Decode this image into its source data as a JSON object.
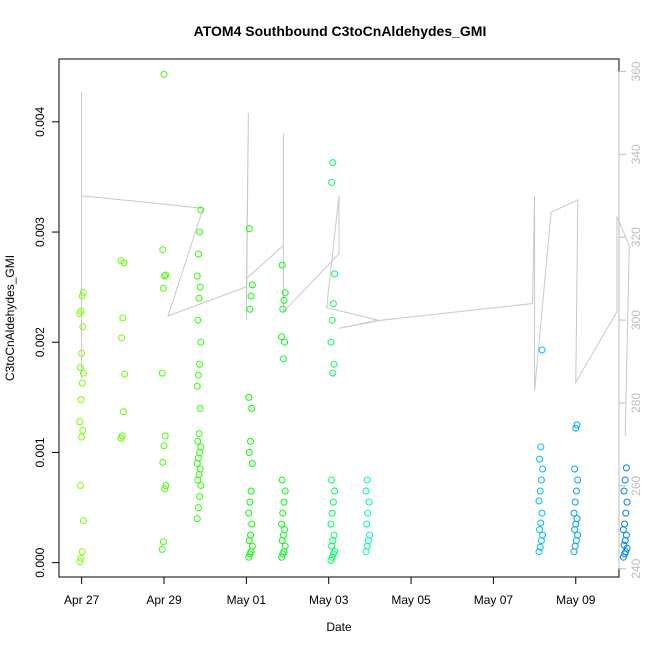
{
  "chart_data": {
    "type": "scatter",
    "title": "ATOM4 Southbound C3toCnAldehydes_GMI",
    "xlabel": "Date",
    "ylabel": "C3toCnAldehydes_GMI",
    "x_ticks": [
      "Apr 27",
      "Apr 29",
      "May 01",
      "May 03",
      "May 05",
      "May 07",
      "May 09"
    ],
    "x_tick_days": [
      0,
      2,
      4,
      6,
      8,
      10,
      12
    ],
    "x_range_days": [
      -0.55,
      13.05
    ],
    "y_ticks": [
      "0.000",
      "0.001",
      "0.002",
      "0.003",
      "0.004"
    ],
    "y_tick_values": [
      0,
      0.001,
      0.002,
      0.003,
      0.004
    ],
    "y_range": [
      -0.00013,
      0.00457
    ],
    "y_right_ticks": [
      "240",
      "260",
      "280",
      "300",
      "320",
      "340",
      "360"
    ],
    "y_right_tick_values": [
      240,
      260,
      280,
      300,
      320,
      340,
      360
    ],
    "y_right_range": [
      238,
      363
    ],
    "point_color_scale": [
      "#7fff00",
      "#00ff00",
      "#00ffff",
      "#0080ff"
    ],
    "line_color": "#c8c8c8",
    "grid": false,
    "series": [
      {
        "x": 0.0,
        "y": [
          1e-05,
          4e-05,
          0.0001,
          0.00038,
          0.0007,
          0.00114,
          0.0012,
          0.00128,
          0.00148,
          0.00163,
          0.00172,
          0.00177,
          0.0019,
          0.00214,
          0.00226,
          0.00228,
          0.00242,
          0.00245
        ]
      },
      {
        "x": 1.0,
        "y": [
          0.00113,
          0.00115,
          0.00137,
          0.00171,
          0.00204,
          0.00222,
          0.00272,
          0.00274
        ]
      },
      {
        "x": 2.0,
        "y": [
          0.00012,
          0.00019,
          0.00067,
          0.0007,
          0.00091,
          0.00106,
          0.00115,
          0.00172,
          0.00249,
          0.0026,
          0.00261,
          0.00284,
          0.00443
        ]
      },
      {
        "x": 2.85,
        "y": [
          0.0004,
          0.0005,
          0.0006,
          0.0007,
          0.00075,
          0.0008,
          0.00085,
          0.0009,
          0.00095,
          0.001,
          0.00105,
          0.0011,
          0.00117,
          0.0014,
          0.0016,
          0.0017,
          0.0018,
          0.002,
          0.0022,
          0.0024,
          0.0025,
          0.0026,
          0.0028,
          0.003,
          0.0032
        ]
      },
      {
        "x": 4.1,
        "y": [
          5e-05,
          8e-05,
          0.0001,
          0.00015,
          0.0002,
          0.00025,
          0.00035,
          0.00045,
          0.00055,
          0.00065,
          0.0009,
          0.001,
          0.0011,
          0.0014,
          0.0015,
          0.0023,
          0.00242,
          0.00252,
          0.00303
        ]
      },
      {
        "x": 4.9,
        "y": [
          5e-05,
          8e-05,
          0.0001,
          0.00015,
          0.0002,
          0.00025,
          0.0003,
          0.00035,
          0.00045,
          0.00055,
          0.00065,
          0.00075,
          0.00185,
          0.002,
          0.00205,
          0.0023,
          0.00238,
          0.00245,
          0.0027
        ]
      },
      {
        "x": 6.1,
        "y": [
          2e-05,
          5e-05,
          8e-05,
          0.0001,
          0.00015,
          0.0002,
          0.00025,
          0.00035,
          0.00045,
          0.00055,
          0.00065,
          0.00075,
          0.00172,
          0.0018,
          0.002,
          0.0022,
          0.00235,
          0.00262,
          0.00345,
          0.00363
        ]
      },
      {
        "x": 6.95,
        "y": [
          0.0001,
          0.00015,
          0.0002,
          0.00025,
          0.00035,
          0.00045,
          0.00055,
          0.00065,
          0.00075
        ]
      },
      {
        "x": 11.15,
        "y": [
          0.0001,
          0.00014,
          0.0002,
          0.00025,
          0.0003,
          0.00036,
          0.00045,
          0.00056,
          0.00065,
          0.00075,
          0.00085,
          0.00094,
          0.00105,
          0.00193
        ]
      },
      {
        "x": 12.0,
        "y": [
          0.0001,
          0.00015,
          0.0002,
          0.00025,
          0.0003,
          0.00035,
          0.0004,
          0.00045,
          0.00055,
          0.00065,
          0.00075,
          0.00085,
          0.00122,
          0.00125
        ]
      },
      {
        "x": 13.2,
        "y": [
          5e-05,
          8e-05,
          0.0001,
          0.00013,
          0.00016,
          0.0002,
          0.00025,
          0.0003,
          0.00035,
          0.00045,
          0.00055,
          0.00065,
          0.00075,
          0.00086
        ]
      }
    ],
    "right_axis_line": [
      [
        0.0,
        286
      ],
      [
        0.0,
        355
      ],
      [
        0.0,
        330
      ],
      [
        2.95,
        327
      ],
      [
        2.1,
        301
      ],
      [
        4.0,
        308
      ],
      [
        4.05,
        350
      ],
      [
        4.0,
        300
      ],
      [
        4.0,
        310
      ],
      [
        4.9,
        318
      ],
      [
        4.9,
        345
      ],
      [
        4.9,
        302
      ],
      [
        6.25,
        316
      ],
      [
        6.25,
        330
      ],
      [
        5.95,
        303
      ],
      [
        7.2,
        300
      ],
      [
        6.25,
        298
      ],
      [
        7.3,
        300
      ],
      [
        10.95,
        304
      ],
      [
        11.0,
        330
      ],
      [
        11.0,
        294
      ],
      [
        11.0,
        283
      ],
      [
        11.4,
        326
      ],
      [
        12.05,
        329
      ],
      [
        12.0,
        285
      ],
      [
        13.0,
        302
      ],
      [
        13.0,
        325
      ],
      [
        13.3,
        318
      ],
      [
        13.2,
        272
      ]
    ]
  }
}
